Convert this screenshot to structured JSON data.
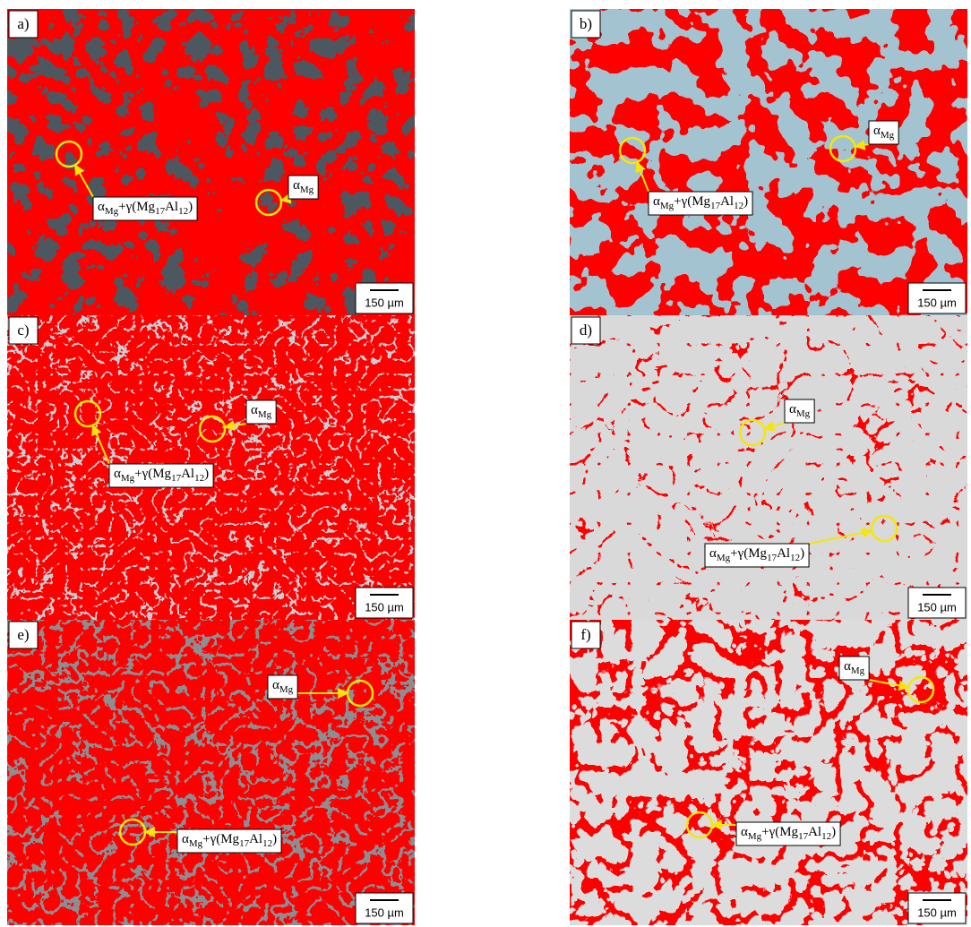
{
  "panels": [
    {
      "label": "a)",
      "scale_bar": "150 µm",
      "annotations": [
        [
          {
            "text": "α"
          },
          {
            "text": "Mg",
            "sub": true
          },
          {
            "text": "+γ(Mg"
          },
          {
            "text": "17",
            "sub": true
          },
          {
            "text": "Al"
          },
          {
            "text": "12",
            "sub": true
          },
          {
            "text": ")"
          }
        ],
        [
          {
            "text": "α"
          },
          {
            "text": "Mg",
            "sub": true
          }
        ]
      ]
    },
    {
      "label": "b)",
      "scale_bar": "150 µm",
      "annotations": [
        [
          {
            "text": "α"
          },
          {
            "text": "Mg",
            "sub": true
          },
          {
            "text": "+γ(Mg"
          },
          {
            "text": "17",
            "sub": true
          },
          {
            "text": "Al"
          },
          {
            "text": "12",
            "sub": true
          },
          {
            "text": ")"
          }
        ],
        [
          {
            "text": "α"
          },
          {
            "text": "Mg",
            "sub": true
          }
        ]
      ]
    },
    {
      "label": "c)",
      "scale_bar": "150 µm",
      "annotations": [
        [
          {
            "text": "α"
          },
          {
            "text": "Mg",
            "sub": true
          },
          {
            "text": "+γ(Mg"
          },
          {
            "text": "17",
            "sub": true
          },
          {
            "text": "Al"
          },
          {
            "text": "12",
            "sub": true
          },
          {
            "text": ")"
          }
        ],
        [
          {
            "text": "α"
          },
          {
            "text": "Mg",
            "sub": true
          }
        ]
      ]
    },
    {
      "label": "d)",
      "scale_bar": "150 µm",
      "annotations": [
        [
          {
            "text": "α"
          },
          {
            "text": "Mg",
            "sub": true
          },
          {
            "text": "+γ(Mg"
          },
          {
            "text": "17",
            "sub": true
          },
          {
            "text": "Al"
          },
          {
            "text": "12",
            "sub": true
          },
          {
            "text": ")"
          }
        ],
        [
          {
            "text": "α"
          },
          {
            "text": "Mg",
            "sub": true
          }
        ]
      ]
    },
    {
      "label": "e)",
      "scale_bar": "150 µm",
      "annotations": [
        [
          {
            "text": "α"
          },
          {
            "text": "Mg",
            "sub": true
          },
          {
            "text": "+γ(Mg"
          },
          {
            "text": "17",
            "sub": true
          },
          {
            "text": "Al"
          },
          {
            "text": "12",
            "sub": true
          },
          {
            "text": ")"
          }
        ],
        [
          {
            "text": "α"
          },
          {
            "text": "Mg",
            "sub": true
          }
        ]
      ]
    },
    {
      "label": "f)",
      "scale_bar": "150 µm",
      "annotations": [
        [
          {
            "text": "α"
          },
          {
            "text": "Mg",
            "sub": true
          },
          {
            "text": "+γ(Mg"
          },
          {
            "text": "17",
            "sub": true
          },
          {
            "text": "Al"
          },
          {
            "text": "12",
            "sub": true
          },
          {
            "text": ")"
          }
        ],
        [
          {
            "text": "α"
          },
          {
            "text": "Mg",
            "sub": true
          }
        ]
      ]
    }
  ]
}
